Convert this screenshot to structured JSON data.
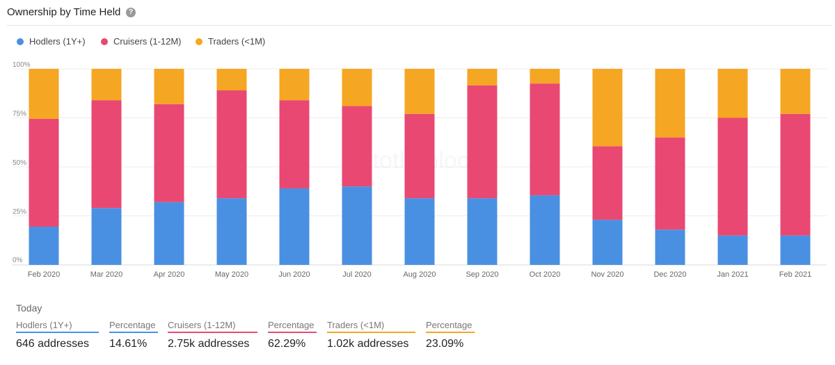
{
  "header": {
    "title": "Ownership by Time Held",
    "help_icon": "question-circle-icon"
  },
  "legend": [
    {
      "label": "Hodlers (1Y+)",
      "color": "#4a90e2"
    },
    {
      "label": "Cruisers (1-12M)",
      "color": "#e94873"
    },
    {
      "label": "Traders (<1M)",
      "color": "#f5a623"
    }
  ],
  "chart_data": {
    "type": "bar",
    "stacked": true,
    "categories": [
      "Feb 2020",
      "Mar 2020",
      "Apr 2020",
      "May 2020",
      "Jun 2020",
      "Jul 2020",
      "Aug 2020",
      "Sep 2020",
      "Oct 2020",
      "Nov 2020",
      "Dec 2020",
      "Jan 2021",
      "Feb 2021"
    ],
    "series": [
      {
        "name": "Hodlers (1Y+)",
        "color": "#4a90e2",
        "values": [
          19.5,
          29,
          32,
          34,
          39,
          40,
          34,
          34,
          35.5,
          23,
          18,
          15,
          15
        ]
      },
      {
        "name": "Cruisers (1-12M)",
        "color": "#e94873",
        "values": [
          55,
          55,
          50,
          55,
          45,
          41,
          43,
          57.5,
          57,
          37.5,
          47,
          60,
          62
        ]
      },
      {
        "name": "Traders (<1M)",
        "color": "#f5a623",
        "values": [
          25.5,
          16,
          18,
          11,
          16,
          19,
          23,
          8.5,
          7.5,
          39.5,
          35,
          25,
          23
        ]
      }
    ],
    "yticks": [
      "0%",
      "25%",
      "50%",
      "75%",
      "100%"
    ],
    "ylim": [
      0,
      100
    ],
    "grid": true,
    "watermark": "intotheblock"
  },
  "today": {
    "label": "Today",
    "stats": [
      {
        "label": "Hodlers (1Y+)",
        "value": "646 addresses",
        "color": "#4a90e2"
      },
      {
        "label": "Percentage",
        "value": "14.61%",
        "color": "#4a90e2"
      },
      {
        "label": "Cruisers (1-12M)",
        "value": "2.75k addresses",
        "color": "#e94873"
      },
      {
        "label": "Percentage",
        "value": "62.29%",
        "color": "#e94873"
      },
      {
        "label": "Traders (<1M)",
        "value": "1.02k addresses",
        "color": "#f5a623"
      },
      {
        "label": "Percentage",
        "value": "23.09%",
        "color": "#f5a623"
      }
    ]
  }
}
